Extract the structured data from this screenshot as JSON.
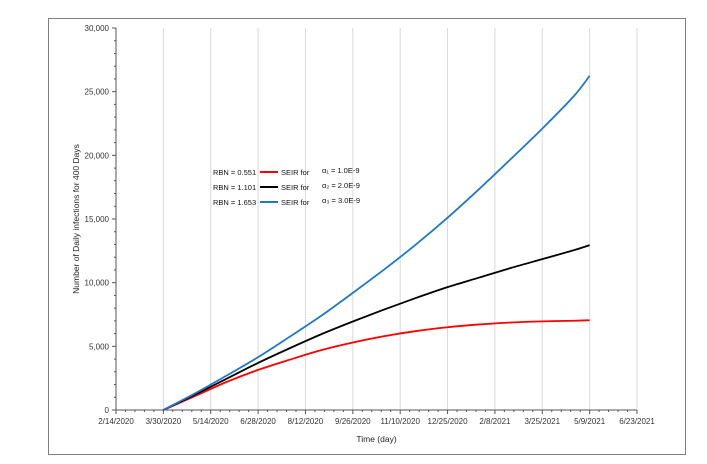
{
  "chart_data": {
    "type": "line",
    "xlabel": "Time (day)",
    "ylabel": "Number of Daily infections for 400 Days",
    "x_ticks": [
      "2/14/2020",
      "3/30/2020",
      "5/14/2020",
      "6/28/2020",
      "8/12/2020",
      "9/26/2020",
      "11/10/2020",
      "12/25/2020",
      "2/8/2021",
      "3/25/2021",
      "5/9/2021",
      "6/23/2021"
    ],
    "y_ticks": [
      "0",
      "5,000",
      "10,000",
      "15,000",
      "20,000",
      "25,000",
      "30,000"
    ],
    "xlim": [
      "2/14/2020",
      "6/23/2021"
    ],
    "ylim": [
      0,
      30000
    ],
    "grid": "vertical",
    "legend_position": "upper-left",
    "series": [
      {
        "name": "SEIR for",
        "rbn": "RBN = 0.551",
        "alpha_label": "α₁ = 1.0E-9",
        "color": "#ff0000",
        "x": [
          "3/30/2020",
          "4/29/2020",
          "5/29/2020",
          "6/28/2020",
          "7/28/2020",
          "8/27/2020",
          "9/26/2020",
          "10/26/2020",
          "11/25/2020",
          "12/25/2020",
          "1/24/2021",
          "2/23/2021",
          "3/25/2021",
          "4/24/2021",
          "5/9/2021"
        ],
        "y": [
          0,
          1100,
          2200,
          3150,
          3950,
          4700,
          5300,
          5800,
          6200,
          6500,
          6720,
          6870,
          6960,
          7010,
          7050
        ]
      },
      {
        "name": "SEIR for",
        "rbn": "RBN = 1.101",
        "alpha_label": "α₂ = 2.0E-9",
        "color": "#000000",
        "x": [
          "3/30/2020",
          "4/29/2020",
          "5/29/2020",
          "6/28/2020",
          "7/28/2020",
          "8/27/2020",
          "9/26/2020",
          "10/26/2020",
          "11/25/2020",
          "12/25/2020",
          "1/24/2021",
          "2/23/2021",
          "3/25/2021",
          "4/24/2021",
          "5/9/2021"
        ],
        "y": [
          0,
          1200,
          2450,
          3700,
          4850,
          5950,
          6950,
          7900,
          8800,
          9650,
          10400,
          11150,
          11850,
          12550,
          12950
        ]
      },
      {
        "name": "SEIR for",
        "rbn": "RBN = 1.653",
        "alpha_label": "α₃ = 3.0E-9",
        "color": "#1f78c8",
        "x": [
          "3/30/2020",
          "4/29/2020",
          "5/29/2020",
          "6/28/2020",
          "7/28/2020",
          "8/27/2020",
          "9/26/2020",
          "10/26/2020",
          "11/25/2020",
          "12/25/2020",
          "1/24/2021",
          "2/23/2021",
          "3/25/2021",
          "4/24/2021",
          "5/9/2021"
        ],
        "y": [
          0,
          1300,
          2700,
          4150,
          5750,
          7400,
          9200,
          11050,
          13000,
          15100,
          17350,
          19700,
          22100,
          24650,
          26250
        ]
      }
    ]
  }
}
